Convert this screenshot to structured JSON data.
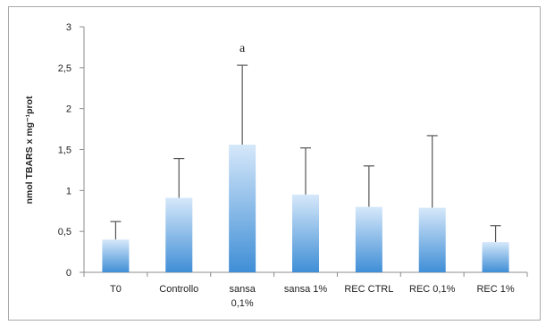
{
  "chart_data": {
    "type": "bar",
    "ylabel": "nmol TBARS x mg⁻¹prot",
    "ylim": [
      0,
      3
    ],
    "y_ticks": [
      "0",
      "0,5",
      "1",
      "1,5",
      "2",
      "2,5",
      "3"
    ],
    "grid": false,
    "categories": [
      [
        "T0"
      ],
      [
        "Controllo"
      ],
      [
        "sansa",
        "0,1%"
      ],
      [
        "sansa 1%"
      ],
      [
        "REC CTRL"
      ],
      [
        "REC 0,1%"
      ],
      [
        "REC 1%"
      ]
    ],
    "values": [
      0.4,
      0.91,
      1.56,
      0.95,
      0.8,
      0.79,
      0.37
    ],
    "error_upper": [
      0.62,
      1.39,
      2.53,
      1.52,
      1.3,
      1.67,
      0.57
    ],
    "annotations": [
      {
        "category_index": 2,
        "text": "a"
      }
    ],
    "colors": {
      "bar_top": "#d6e8fa",
      "bar_bottom": "#3f8ed6",
      "axis": "#8c8c8c",
      "error": "#555555"
    }
  }
}
